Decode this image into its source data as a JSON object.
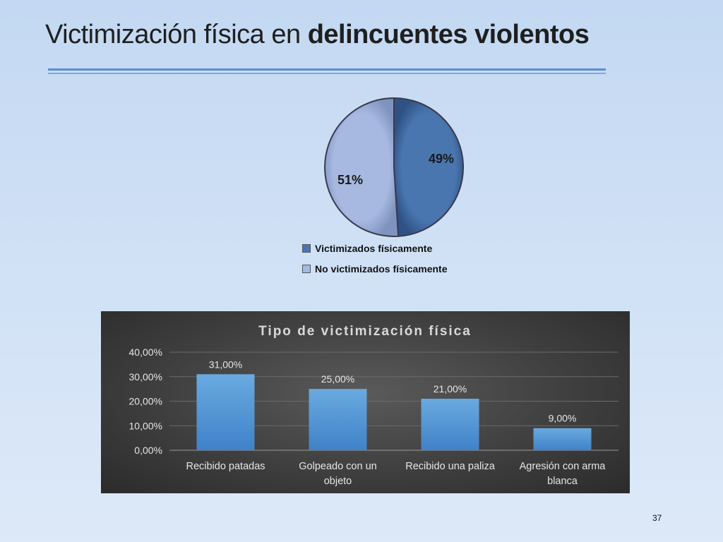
{
  "slide": {
    "title_prefix": "Victimización física en ",
    "title_emphasis": "delincuentes violentos",
    "page_number": "37"
  },
  "chart_data": [
    {
      "type": "pie",
      "slices": [
        {
          "name": "Victimizados físicamente",
          "value": 49,
          "label": "49%",
          "color": "#4a76b0"
        },
        {
          "name": "No victimizados físicamente",
          "value": 51,
          "label": "51%",
          "color": "#a7b9e0"
        }
      ],
      "legend_position": "bottom"
    },
    {
      "type": "bar",
      "title": "Tipo de victimización física",
      "categories": [
        [
          "Recibido patadas"
        ],
        [
          "Golpeado con un",
          "objeto"
        ],
        [
          "Recibido una paliza"
        ],
        [
          "Agresión con arma",
          "blanca"
        ]
      ],
      "values": [
        31,
        25,
        21,
        9
      ],
      "value_labels": [
        "31,00%",
        "25,00%",
        "21,00%",
        "9,00%"
      ],
      "ylim": [
        0,
        40
      ],
      "yticks": [
        0,
        10,
        20,
        30,
        40
      ],
      "ytick_labels": [
        "0,00%",
        "10,00%",
        "20,00%",
        "30,00%",
        "40,00%"
      ],
      "grid": true,
      "bar_color": "#5b9bd5",
      "background": "dark"
    }
  ]
}
